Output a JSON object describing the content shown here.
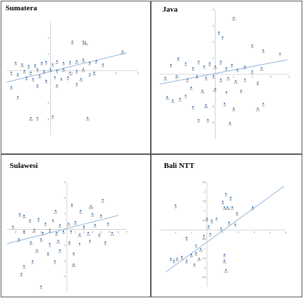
{
  "figure": {
    "colors": {
      "point": "#2f6fb5",
      "trend": "#8fb4dc",
      "axis": "#c8c8c8",
      "label": "#555555",
      "border": "#555555"
    }
  },
  "chart_data": [
    {
      "type": "scatter",
      "title": "Sumatera",
      "xlim": [
        -2,
        4
      ],
      "ylim": [
        -4,
        3
      ],
      "x_ticks": [
        -1,
        1,
        2,
        3,
        4
      ],
      "y_ticks": [
        -3,
        -2,
        1,
        2
      ],
      "trend": [
        [
          -2,
          -0.7
        ],
        [
          3.5,
          1.1
        ]
      ],
      "points": [
        {
          "x": 1.0,
          "y": 1.8,
          "label": "56"
        },
        {
          "x": 1.5,
          "y": 1.8,
          "label": "33"
        },
        {
          "x": 1.6,
          "y": 1.75,
          "label": "1988"
        },
        {
          "x": 3.3,
          "y": 1.2,
          "label": "137"
        },
        {
          "x": -1.6,
          "y": 0.5,
          "label": "29"
        },
        {
          "x": -1.3,
          "y": 0.4,
          "label": "104"
        },
        {
          "x": -1.0,
          "y": 0.3,
          "label": "35"
        },
        {
          "x": -0.7,
          "y": 0.35,
          "label": "50"
        },
        {
          "x": -0.4,
          "y": 0.5,
          "label": "92"
        },
        {
          "x": -0.2,
          "y": 0.55,
          "label": "22"
        },
        {
          "x": 0.1,
          "y": 0.4,
          "label": "71"
        },
        {
          "x": 0.3,
          "y": 0.6,
          "label": "112"
        },
        {
          "x": 0.6,
          "y": 0.5,
          "label": "91"
        },
        {
          "x": 0.9,
          "y": 0.55,
          "label": "81"
        },
        {
          "x": 1.2,
          "y": 0.6,
          "label": "102"
        },
        {
          "x": 1.5,
          "y": 0.7,
          "label": "100"
        },
        {
          "x": 1.8,
          "y": 0.5,
          "label": "87"
        },
        {
          "x": 2.1,
          "y": 0.6,
          "label": "97"
        },
        {
          "x": 2.4,
          "y": 0.4,
          "label": "78"
        },
        {
          "x": -1.8,
          "y": -0.1,
          "label": "14"
        },
        {
          "x": -1.5,
          "y": -0.2,
          "label": "55"
        },
        {
          "x": -1.2,
          "y": 0.0,
          "label": "48"
        },
        {
          "x": -0.9,
          "y": -0.1,
          "label": "47"
        },
        {
          "x": -0.6,
          "y": 0.1,
          "label": "18"
        },
        {
          "x": -0.3,
          "y": 0.0,
          "label": "88"
        },
        {
          "x": 0.0,
          "y": 0.1,
          "label": "25"
        },
        {
          "x": 0.3,
          "y": 0.0,
          "label": "8"
        },
        {
          "x": 0.6,
          "y": 0.1,
          "label": "142"
        },
        {
          "x": 0.9,
          "y": -0.1,
          "label": "126"
        },
        {
          "x": 1.2,
          "y": 0.0,
          "label": "63"
        },
        {
          "x": 1.5,
          "y": 0.1,
          "label": "118"
        },
        {
          "x": 1.8,
          "y": -0.2,
          "label": "24"
        },
        {
          "x": 2.0,
          "y": -0.1,
          "label": "116"
        },
        {
          "x": -1.1,
          "y": -0.4,
          "label": "86"
        },
        {
          "x": -0.8,
          "y": -0.5,
          "label": "13"
        },
        {
          "x": -0.5,
          "y": -0.3,
          "label": "143"
        },
        {
          "x": -0.2,
          "y": -0.6,
          "label": "69"
        },
        {
          "x": 0.2,
          "y": -0.4,
          "label": "7"
        },
        {
          "x": 0.5,
          "y": -0.5,
          "label": "77"
        },
        {
          "x": 0.8,
          "y": -0.4,
          "label": "42"
        },
        {
          "x": 1.4,
          "y": -0.5,
          "label": "120"
        },
        {
          "x": -0.6,
          "y": -0.9,
          "label": "49"
        },
        {
          "x": 0.3,
          "y": -0.9,
          "label": "117"
        },
        {
          "x": 1.2,
          "y": -0.8,
          "label": "70"
        },
        {
          "x": -1.8,
          "y": -1.0,
          "label": "15"
        },
        {
          "x": -1.5,
          "y": -1.6,
          "label": "21"
        },
        {
          "x": -0.9,
          "y": -2.9,
          "label": "866"
        },
        {
          "x": -0.6,
          "y": -2.9,
          "label": "19"
        },
        {
          "x": 0.1,
          "y": -2.8,
          "label": "13"
        },
        {
          "x": 1.7,
          "y": -2.9,
          "label": "130"
        }
      ]
    },
    {
      "type": "scatter",
      "title": "Java",
      "xlim": [
        -3,
        4
      ],
      "ylim": [
        -4,
        4
      ],
      "x_ticks": [
        -2,
        -1,
        1,
        2,
        3,
        4
      ],
      "y_ticks": [
        -3,
        -2,
        -1,
        1,
        2,
        3,
        4
      ],
      "trend": [
        [
          -3,
          -0.6
        ],
        [
          3.9,
          0.9
        ]
      ],
      "points": [
        {
          "x": 1.0,
          "y": 3.5,
          "label": "133"
        },
        {
          "x": 0.2,
          "y": 2.6,
          "label": "22"
        },
        {
          "x": 0.4,
          "y": 2.3,
          "label": "8"
        },
        {
          "x": 2.0,
          "y": 1.8,
          "label": "28"
        },
        {
          "x": 2.6,
          "y": 1.5,
          "label": "59"
        },
        {
          "x": 3.5,
          "y": 1.3,
          "label": "77"
        },
        {
          "x": -2.4,
          "y": 0.6,
          "label": "15"
        },
        {
          "x": -2.0,
          "y": 1.0,
          "label": "81"
        },
        {
          "x": -1.6,
          "y": 0.7,
          "label": "14"
        },
        {
          "x": -1.2,
          "y": 0.4,
          "label": "48"
        },
        {
          "x": -0.9,
          "y": 0.8,
          "label": "92"
        },
        {
          "x": -0.6,
          "y": 0.5,
          "label": "71"
        },
        {
          "x": -0.3,
          "y": 0.7,
          "label": "56"
        },
        {
          "x": 0.0,
          "y": 0.5,
          "label": "102"
        },
        {
          "x": 0.3,
          "y": 0.8,
          "label": "112"
        },
        {
          "x": 0.6,
          "y": 0.4,
          "label": "97"
        },
        {
          "x": 0.9,
          "y": 0.6,
          "label": "87"
        },
        {
          "x": 1.2,
          "y": 0.3,
          "label": "78"
        },
        {
          "x": 1.6,
          "y": 0.5,
          "label": "116"
        },
        {
          "x": 2.0,
          "y": 0.2,
          "label": "63"
        },
        {
          "x": 2.5,
          "y": 0.4,
          "label": "126"
        },
        {
          "x": -2.7,
          "y": -0.2,
          "label": "104"
        },
        {
          "x": -2.1,
          "y": -0.1,
          "label": "35"
        },
        {
          "x": -1.5,
          "y": -0.3,
          "label": "50"
        },
        {
          "x": -1.0,
          "y": -0.1,
          "label": "29"
        },
        {
          "x": -0.5,
          "y": -0.2,
          "label": "18"
        },
        {
          "x": -0.1,
          "y": -0.1,
          "label": "25"
        },
        {
          "x": 0.3,
          "y": -0.3,
          "label": "88"
        },
        {
          "x": 0.7,
          "y": -0.2,
          "label": "142"
        },
        {
          "x": 1.1,
          "y": -0.4,
          "label": "118"
        },
        {
          "x": 1.6,
          "y": -0.3,
          "label": "24"
        },
        {
          "x": 2.3,
          "y": -0.5,
          "label": "86"
        },
        {
          "x": -1.3,
          "y": -0.8,
          "label": "13"
        },
        {
          "x": -0.7,
          "y": -1.0,
          "label": "143"
        },
        {
          "x": 0.0,
          "y": -0.9,
          "label": "69"
        },
        {
          "x": 0.6,
          "y": -1.1,
          "label": "7"
        },
        {
          "x": 1.4,
          "y": -1.0,
          "label": "42"
        },
        {
          "x": -2.6,
          "y": -1.4,
          "label": "120"
        },
        {
          "x": -2.3,
          "y": -1.6,
          "label": "49"
        },
        {
          "x": -1.9,
          "y": -1.5,
          "label": "117"
        },
        {
          "x": -1.6,
          "y": -1.3,
          "label": "70"
        },
        {
          "x": -1.2,
          "y": -2.0,
          "label": "21"
        },
        {
          "x": -0.5,
          "y": -1.9,
          "label": "866"
        },
        {
          "x": 0.5,
          "y": -1.8,
          "label": "19"
        },
        {
          "x": 1.0,
          "y": -2.1,
          "label": "130"
        },
        {
          "x": 2.6,
          "y": -1.8,
          "label": "91"
        },
        {
          "x": 2.3,
          "y": -2.1,
          "label": "100"
        },
        {
          "x": -0.9,
          "y": -2.8,
          "label": "61"
        },
        {
          "x": -0.4,
          "y": -2.8,
          "label": "62"
        },
        {
          "x": 0.8,
          "y": -3.0,
          "label": "55"
        }
      ]
    },
    {
      "type": "scatter",
      "title": "Sulawesi",
      "xlim": [
        -7,
        7
      ],
      "ylim": [
        -4,
        3
      ],
      "x_ticks": [
        -6,
        -5,
        -4,
        -3,
        -2,
        -1,
        1,
        2,
        3,
        4,
        5,
        6,
        7
      ],
      "y_ticks": [
        -3,
        -2,
        -1,
        1,
        2,
        3
      ],
      "trend": [
        [
          -7,
          -0.9
        ],
        [
          6.0,
          0.9
        ]
      ],
      "points": [
        {
          "x": 4.2,
          "y": 1.9,
          "label": "33"
        },
        {
          "x": 0.6,
          "y": 1.6,
          "label": "56"
        },
        {
          "x": 2.8,
          "y": 1.5,
          "label": "1988"
        },
        {
          "x": -1.3,
          "y": 1.2,
          "label": "137"
        },
        {
          "x": 1.6,
          "y": 1.2,
          "label": "92"
        },
        {
          "x": 3.0,
          "y": 1.0,
          "label": "112"
        },
        {
          "x": 4.0,
          "y": 0.9,
          "label": "91"
        },
        {
          "x": -5.5,
          "y": 1.0,
          "label": "29"
        },
        {
          "x": -5.0,
          "y": 0.9,
          "label": "104"
        },
        {
          "x": -4.3,
          "y": 0.6,
          "label": "35"
        },
        {
          "x": -3.3,
          "y": 0.7,
          "label": "50"
        },
        {
          "x": -2.5,
          "y": 0.4,
          "label": "22"
        },
        {
          "x": -1.6,
          "y": 0.6,
          "label": "71"
        },
        {
          "x": -0.8,
          "y": 0.3,
          "label": "81"
        },
        {
          "x": 0.2,
          "y": 0.4,
          "label": "102"
        },
        {
          "x": 1.0,
          "y": 0.5,
          "label": "100"
        },
        {
          "x": 2.0,
          "y": 0.2,
          "label": "87"
        },
        {
          "x": 3.3,
          "y": 0.3,
          "label": "97"
        },
        {
          "x": 4.8,
          "y": 0.4,
          "label": "78"
        },
        {
          "x": -6.3,
          "y": 0.2,
          "label": "14"
        },
        {
          "x": -5.0,
          "y": -0.1,
          "label": "55"
        },
        {
          "x": -3.8,
          "y": 0.0,
          "label": "48"
        },
        {
          "x": -2.8,
          "y": -0.2,
          "label": "47"
        },
        {
          "x": -2.0,
          "y": 0.0,
          "label": "18"
        },
        {
          "x": -1.2,
          "y": -0.2,
          "label": "88"
        },
        {
          "x": -0.4,
          "y": -0.1,
          "label": "25"
        },
        {
          "x": 0.5,
          "y": -0.1,
          "label": "8"
        },
        {
          "x": 1.5,
          "y": -0.3,
          "label": "142"
        },
        {
          "x": 2.5,
          "y": -0.2,
          "label": "126"
        },
        {
          "x": 3.8,
          "y": -0.3,
          "label": "63"
        },
        {
          "x": 5.3,
          "y": -0.2,
          "label": "118"
        },
        {
          "x": -5.6,
          "y": -0.6,
          "label": "24"
        },
        {
          "x": -4.2,
          "y": -0.8,
          "label": "116"
        },
        {
          "x": -3.0,
          "y": -0.6,
          "label": "86"
        },
        {
          "x": -2.0,
          "y": -0.9,
          "label": "13"
        },
        {
          "x": -1.0,
          "y": -0.7,
          "label": "143"
        },
        {
          "x": 0.3,
          "y": -0.8,
          "label": "69"
        },
        {
          "x": 1.5,
          "y": -0.9,
          "label": "7"
        },
        {
          "x": 2.7,
          "y": -0.7,
          "label": "77"
        },
        {
          "x": 4.5,
          "y": -0.8,
          "label": "42"
        },
        {
          "x": -3.5,
          "y": -1.3,
          "label": "120"
        },
        {
          "x": -2.2,
          "y": -1.5,
          "label": "49"
        },
        {
          "x": -0.8,
          "y": -1.3,
          "label": "117"
        },
        {
          "x": 0.8,
          "y": -1.5,
          "label": "70"
        },
        {
          "x": -4.0,
          "y": -2.0,
          "label": "15"
        },
        {
          "x": -1.4,
          "y": -2.0,
          "label": "21"
        },
        {
          "x": 0.8,
          "y": -2.2,
          "label": "866"
        },
        {
          "x": -5.0,
          "y": -2.3,
          "label": "19"
        },
        {
          "x": -5.3,
          "y": -2.8,
          "label": "20"
        },
        {
          "x": -3.0,
          "y": -3.6,
          "label": "31"
        }
      ]
    },
    {
      "type": "scatter",
      "title": "Bali NTT",
      "xlim": [
        -3,
        5
      ],
      "ylim": [
        -3,
        2.5
      ],
      "x_ticks": [
        -2,
        -1,
        1,
        2,
        3,
        4,
        5
      ],
      "y_ticks": [
        -2.5,
        -2,
        -1.5,
        -1,
        -0.5,
        0.5,
        1,
        1.5,
        2,
        2.5
      ],
      "trend": [
        [
          -2.6,
          -2.2
        ],
        [
          4.9,
          2.3
        ]
      ],
      "points": [
        {
          "x": 1.2,
          "y": 1.9,
          "label": "8"
        },
        {
          "x": 1.5,
          "y": 1.7,
          "label": "53"
        },
        {
          "x": 1.0,
          "y": 1.5,
          "label": "54"
        },
        {
          "x": -2.0,
          "y": 1.3,
          "label": "35"
        },
        {
          "x": 1.1,
          "y": 1.2,
          "label": "106"
        },
        {
          "x": 1.3,
          "y": 1.2,
          "label": "1988"
        },
        {
          "x": 1.6,
          "y": 1.2,
          "label": "22"
        },
        {
          "x": 2.9,
          "y": 1.2,
          "label": "80"
        },
        {
          "x": 1.9,
          "y": 0.9,
          "label": "33"
        },
        {
          "x": 0.0,
          "y": 0.6,
          "label": "33"
        },
        {
          "x": 0.3,
          "y": 0.5,
          "label": "56"
        },
        {
          "x": 0.6,
          "y": 0.6,
          "label": "71"
        },
        {
          "x": 1.4,
          "y": 0.4,
          "label": "37"
        },
        {
          "x": 1.8,
          "y": 0.3,
          "label": "27"
        },
        {
          "x": 0.1,
          "y": 0.2,
          "label": "34"
        },
        {
          "x": 0.9,
          "y": 0.1,
          "label": "91"
        },
        {
          "x": -1.3,
          "y": -0.4,
          "label": "36"
        },
        {
          "x": -0.2,
          "y": -0.3,
          "label": "13"
        },
        {
          "x": 0.2,
          "y": -0.2,
          "label": "24"
        },
        {
          "x": -0.7,
          "y": -0.8,
          "label": "14"
        },
        {
          "x": -0.4,
          "y": -1.0,
          "label": "126"
        },
        {
          "x": -2.3,
          "y": -1.5,
          "label": "46"
        },
        {
          "x": -2.1,
          "y": -1.6,
          "label": "50"
        },
        {
          "x": -1.9,
          "y": -1.5,
          "label": "48"
        },
        {
          "x": -1.6,
          "y": -1.4,
          "label": "29"
        },
        {
          "x": -1.3,
          "y": -1.6,
          "label": "86"
        },
        {
          "x": -1.0,
          "y": -1.3,
          "label": "116"
        },
        {
          "x": -0.7,
          "y": -1.2,
          "label": "69"
        },
        {
          "x": -0.5,
          "y": -1.5,
          "label": "120"
        },
        {
          "x": -0.8,
          "y": -1.8,
          "label": "57"
        },
        {
          "x": 1.1,
          "y": -1.3,
          "label": "23"
        },
        {
          "x": 1.1,
          "y": -1.6,
          "label": "105"
        },
        {
          "x": 1.2,
          "y": -2.1,
          "label": "104"
        }
      ]
    }
  ]
}
